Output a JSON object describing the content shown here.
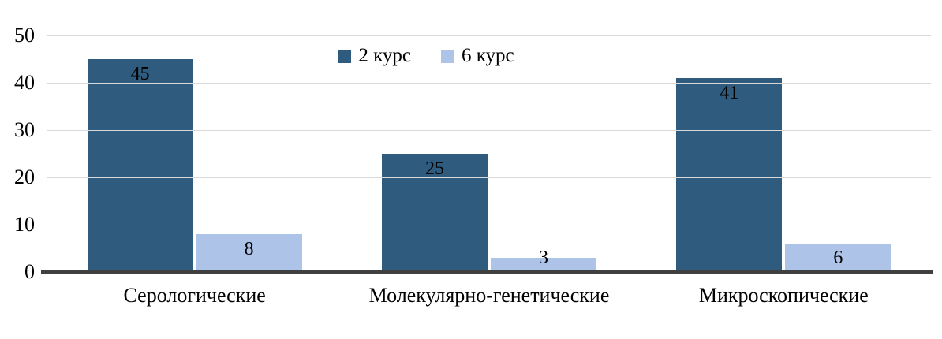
{
  "chart_data": {
    "type": "bar",
    "title": "",
    "xlabel": "",
    "ylabel": "",
    "categories": [
      "Серологические",
      "Молекулярно-генетические",
      "Микроскопические"
    ],
    "series": [
      {
        "name": "2 курс",
        "color": "#2e5b7e",
        "values": [
          45,
          25,
          41
        ]
      },
      {
        "name": "6 курс",
        "color": "#aec3e8",
        "values": [
          8,
          3,
          6
        ]
      }
    ],
    "ylim": [
      0,
      50
    ],
    "yticks": [
      0,
      10,
      20,
      30,
      40,
      50
    ],
    "grid": true,
    "legend_position": "top-center",
    "data_labels": true
  },
  "colors": {
    "background": "#ffffff",
    "gridline": "#d9d9d9",
    "axis_line": "#404040",
    "text": "#000000",
    "series_2_kurs": "#2e5b7e",
    "series_6_kurs": "#aec3e8"
  }
}
